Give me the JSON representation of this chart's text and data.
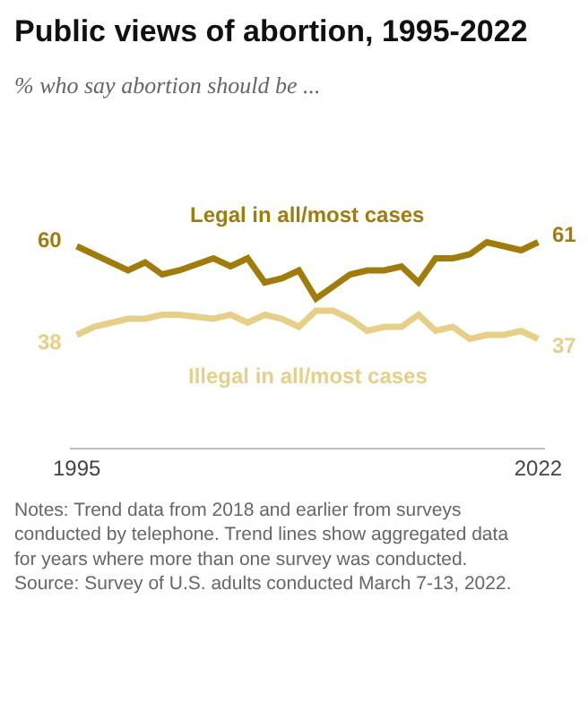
{
  "chart_data": {
    "type": "line",
    "title": "Public views of abortion, 1995-2022",
    "subtitle": "% who say abortion should be ...",
    "x": [
      1995,
      1996,
      1998,
      1999,
      2000,
      2001,
      2003,
      2004,
      2005,
      2006,
      2007,
      2008,
      2009,
      2010,
      2011,
      2012,
      2013,
      2014,
      2015,
      2016,
      2017,
      2018,
      2019,
      2020,
      2021,
      2022
    ],
    "series": [
      {
        "name": "Legal in all/most cases",
        "color": "#a07c0c",
        "values": [
          60,
          58,
          54,
          56,
          53,
          54,
          57,
          55,
          57,
          51,
          52,
          54,
          47,
          50,
          53,
          54,
          54,
          55,
          51,
          57,
          57,
          58,
          61,
          60,
          59,
          61
        ],
        "value_labels": [
          "60",
          null,
          null,
          null,
          null,
          null,
          null,
          null,
          null,
          null,
          null,
          null,
          null,
          null,
          null,
          null,
          null,
          null,
          null,
          null,
          null,
          null,
          null,
          null,
          null,
          "61"
        ]
      },
      {
        "name": "Illegal in all/most cases",
        "color": "#e6d088",
        "values": [
          38,
          40,
          42,
          42,
          43,
          43,
          42,
          43,
          41,
          43,
          42,
          40,
          44,
          44,
          42,
          39,
          40,
          40,
          43,
          39,
          40,
          37,
          38,
          38,
          39,
          37
        ],
        "value_labels": [
          "38",
          null,
          null,
          null,
          null,
          null,
          null,
          null,
          null,
          null,
          null,
          null,
          null,
          null,
          null,
          null,
          null,
          null,
          null,
          null,
          null,
          null,
          null,
          null,
          null,
          "37"
        ]
      }
    ],
    "xlim": [
      1994.6,
      2022.4
    ],
    "xticks": [
      1995,
      2022
    ],
    "tick_labels": "x",
    "legend": false,
    "marker": "none",
    "line_style": "solid",
    "annotations": [
      "Notes: Trend data from 2018 and earlier from surveys conducted by telephone. Trend lines show aggregated data for years where more than one survey was conducted.",
      "Source: Survey of U.S. adults conducted March 7-13, 2022."
    ]
  }
}
